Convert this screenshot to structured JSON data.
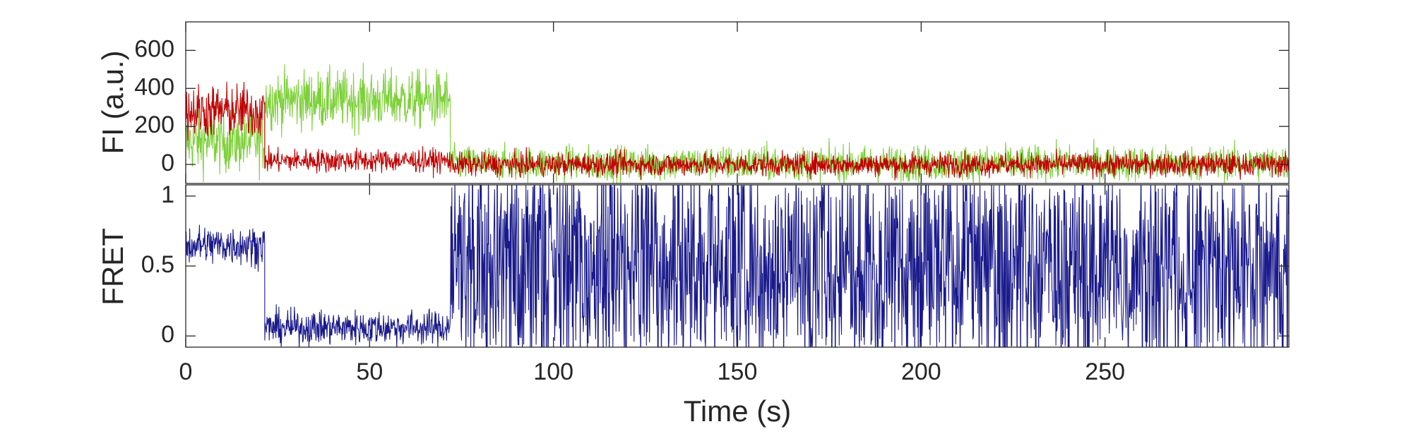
{
  "chart_data": [
    {
      "type": "line",
      "panel": "top",
      "xlabel": "",
      "ylabel": "FI (a.u.)",
      "xlim": [
        0,
        300
      ],
      "ylim": [
        -100,
        750
      ],
      "yticks": [
        0,
        200,
        400,
        600
      ],
      "ytick_labels": [
        "0",
        "200",
        "400",
        "600"
      ],
      "xtick_labels_shown": false,
      "grid": false,
      "legend": "none",
      "series": [
        {
          "color": "#7ed03a",
          "segments": [
            {
              "x": [
                0,
                21.5
              ],
              "mean": 120,
              "noise_sd": 80
            },
            {
              "x": [
                21.5,
                72
              ],
              "mean": 340,
              "noise_sd": 75
            },
            {
              "x": [
                72,
                300
              ],
              "mean": 5,
              "noise_sd": 45
            }
          ]
        },
        {
          "color": "#c00000",
          "segments": [
            {
              "x": [
                0,
                21.5
              ],
              "mean": 280,
              "noise_sd": 70
            },
            {
              "x": [
                21.5,
                72
              ],
              "mean": 20,
              "noise_sd": 30
            },
            {
              "x": [
                72,
                300
              ],
              "mean": 0,
              "noise_sd": 30
            }
          ]
        }
      ]
    },
    {
      "type": "line",
      "panel": "bottom",
      "xlabel": "Time (s)",
      "ylabel": "FRET",
      "xlim": [
        0,
        300
      ],
      "ylim": [
        -0.08,
        1.08
      ],
      "xticks": [
        0,
        50,
        100,
        150,
        200,
        250
      ],
      "xtick_labels": [
        "0",
        "50",
        "100",
        "150",
        "200",
        "250"
      ],
      "yticks": [
        0,
        0.5,
        1
      ],
      "ytick_labels": [
        "0",
        "0.5",
        "1"
      ],
      "grid": false,
      "legend": "none",
      "series": [
        {
          "color": "#1a1a8c",
          "segments": [
            {
              "x": [
                0,
                21.5
              ],
              "mean": 0.65,
              "noise_sd": 0.07
            },
            {
              "x": [
                21.5,
                72
              ],
              "mean": 0.06,
              "noise_sd": 0.06
            },
            {
              "x": [
                72,
                300
              ],
              "mean": 0.5,
              "noise_sd": 0.45,
              "clipped": true
            }
          ]
        }
      ]
    }
  ]
}
